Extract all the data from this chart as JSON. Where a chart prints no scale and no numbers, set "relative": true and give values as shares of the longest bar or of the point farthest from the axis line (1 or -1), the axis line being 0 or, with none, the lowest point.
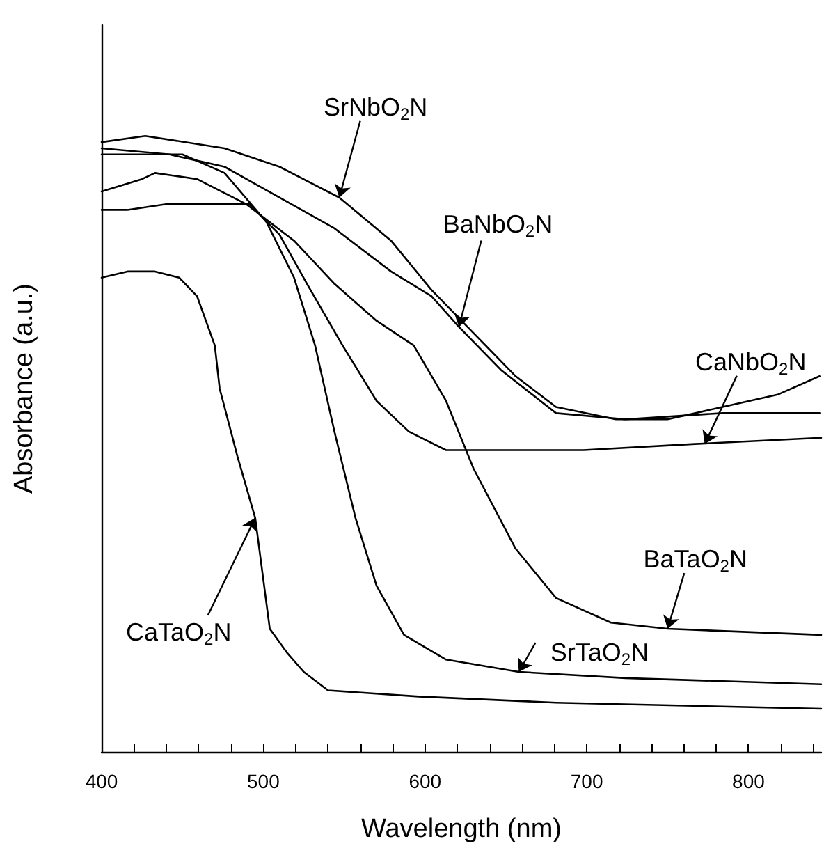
{
  "chart_data": {
    "type": "line",
    "xlabel": "Wavelength (nm)",
    "ylabel": "Absorbance (a.u.)",
    "relative": true,
    "xlim": [
      400,
      845
    ],
    "xticks": [
      400,
      {
        "value": 420,
        "label": null
      },
      {
        "value": 440,
        "label": null
      },
      {
        "value": 460,
        "label": null
      },
      {
        "value": 480,
        "label": null
      },
      500,
      {
        "value": 520,
        "label": null
      },
      {
        "value": 540,
        "label": null
      },
      {
        "value": 560,
        "label": null
      },
      {
        "value": 580,
        "label": null
      },
      600,
      {
        "value": 620,
        "label": null
      },
      {
        "value": 640,
        "label": null
      },
      {
        "value": 660,
        "label": null
      },
      {
        "value": 680,
        "label": null
      },
      700,
      {
        "value": 720,
        "label": null
      },
      {
        "value": 740,
        "label": null
      },
      {
        "value": 760,
        "label": null
      },
      {
        "value": 780,
        "label": null
      },
      800,
      {
        "value": 820,
        "label": null
      },
      {
        "value": 840,
        "label": null
      }
    ],
    "grid": false,
    "marker": "none",
    "line_style": "solid",
    "series": [
      {
        "color": "#000000",
        "x": [
          400,
          427,
          476,
          510,
          547,
          579,
          604,
          630,
          656,
          681,
          718,
          750,
          784,
          818,
          844
        ],
        "values": [
          0.99,
          1.0,
          0.98,
          0.95,
          0.9,
          0.83,
          0.75,
          0.68,
          0.61,
          0.56,
          0.54,
          0.54,
          0.56,
          0.58,
          0.61
        ]
      },
      {
        "color": "#000000",
        "x": [
          400,
          442,
          476,
          510,
          544,
          579,
          604,
          621,
          647,
          681,
          724,
          784,
          844
        ],
        "values": [
          0.98,
          0.97,
          0.95,
          0.9,
          0.85,
          0.78,
          0.74,
          0.69,
          0.62,
          0.55,
          0.54,
          0.55,
          0.55
        ]
      },
      {
        "color": "#000000",
        "x": [
          400,
          416,
          442,
          468,
          491,
          510,
          527,
          549,
          570,
          590,
          613,
          647,
          698,
          767,
          845
        ],
        "values": [
          0.88,
          0.88,
          0.89,
          0.89,
          0.89,
          0.84,
          0.76,
          0.66,
          0.57,
          0.52,
          0.49,
          0.49,
          0.49,
          0.5,
          0.51
        ]
      },
      {
        "color": "#000000",
        "x": [
          400,
          425,
          450,
          476,
          502,
          519,
          532,
          544,
          557,
          570,
          587,
          613,
          658,
          724,
          845
        ],
        "values": [
          0.97,
          0.97,
          0.97,
          0.94,
          0.86,
          0.77,
          0.66,
          0.52,
          0.38,
          0.27,
          0.19,
          0.15,
          0.13,
          0.12,
          0.11
        ]
      },
      {
        "color": "#000000",
        "x": [
          400,
          425,
          433,
          459,
          489,
          519,
          544,
          570,
          593,
          613,
          630,
          656,
          681,
          715,
          750,
          845
        ],
        "values": [
          0.91,
          0.93,
          0.94,
          0.93,
          0.89,
          0.83,
          0.76,
          0.7,
          0.66,
          0.57,
          0.46,
          0.33,
          0.25,
          0.21,
          0.2,
          0.19
        ]
      },
      {
        "color": "#000000",
        "x": [
          400,
          416,
          433,
          448,
          459,
          470,
          473,
          484,
          495,
          504,
          515,
          525,
          540,
          596,
          681,
          845
        ],
        "values": [
          0.77,
          0.78,
          0.78,
          0.77,
          0.74,
          0.66,
          0.59,
          0.48,
          0.38,
          0.2,
          0.16,
          0.13,
          0.1,
          0.09,
          0.08,
          0.07
        ]
      }
    ],
    "annotations": [
      {
        "text": "SrNbO$_{2}$N",
        "x": 547,
        "y": 0.9
      },
      {
        "text": "BaNbO$_{2}$N",
        "x": 621,
        "y": 0.69
      },
      {
        "text": "CaNbO$_{2}$N",
        "x": 773,
        "y": 0.5
      },
      {
        "text": "BaTaO$_{2}$N",
        "x": 750,
        "y": 0.2
      },
      {
        "text": "SrTaO$_{2}$N",
        "x": 658,
        "y": 0.13
      },
      {
        "text": "CaTaO$_{2}$N",
        "x": 495,
        "y": 0.38
      }
    ]
  }
}
